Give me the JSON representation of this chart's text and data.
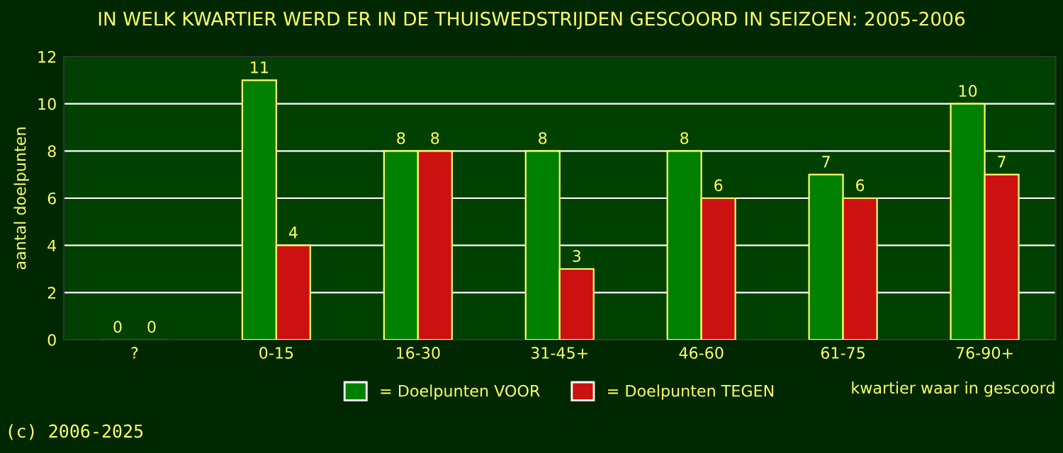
{
  "chart_data": {
    "type": "bar",
    "title": "IN WELK KWARTIER WERD ER IN DE THUISWEDSTRIJDEN GESCOORD IN SEIZOEN: 2005-2006",
    "xlabel": "kwartier waar in gescoord",
    "ylabel": "aantal doelpunten",
    "categories": [
      "?",
      "0-15",
      "16-30",
      "31-45+",
      "46-60",
      "61-75",
      "76-90+"
    ],
    "series": [
      {
        "name": "= Doelpunten VOOR",
        "color": "#008000",
        "values": [
          0,
          11,
          8,
          8,
          8,
          7,
          10
        ]
      },
      {
        "name": "= Doelpunten TEGEN",
        "color": "#cc1111",
        "values": [
          0,
          4,
          8,
          3,
          6,
          6,
          7
        ]
      }
    ],
    "ylim": [
      0,
      12
    ],
    "yticks": [
      0,
      2,
      4,
      6,
      8,
      10,
      12
    ],
    "grid": "y",
    "legend": "bottom",
    "data_labels": true,
    "annotations": [
      "(c) 2006-2025"
    ]
  }
}
